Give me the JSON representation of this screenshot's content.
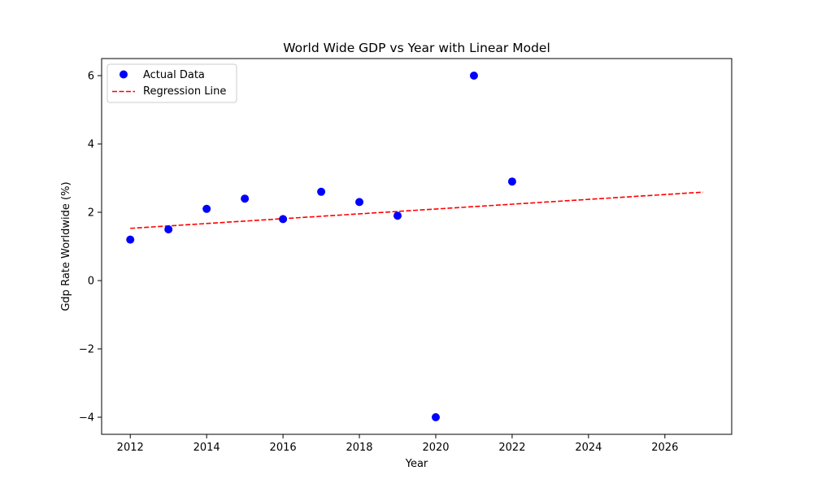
{
  "chart_data": {
    "type": "scatter",
    "title": "World Wide GDP vs Year with Linear Model",
    "xlabel": "Year",
    "ylabel": "Gdp Rate Worldwide (%)",
    "xlim": [
      2011.25,
      2027.75
    ],
    "ylim": [
      -4.5,
      6.5
    ],
    "xticks": [
      2012,
      2014,
      2016,
      2018,
      2020,
      2022,
      2024,
      2026
    ],
    "yticks": [
      -4,
      -2,
      0,
      2,
      4,
      6
    ],
    "xtick_labels": [
      "2012",
      "2014",
      "2016",
      "2018",
      "2020",
      "2022",
      "2024",
      "2026"
    ],
    "ytick_labels": [
      "−4",
      "−2",
      "0",
      "2",
      "4",
      "6"
    ],
    "grid": false,
    "legend_position": "top-left",
    "series": [
      {
        "name": "Actual Data",
        "kind": "scatter",
        "color": "#0000ff",
        "x": [
          2012,
          2013,
          2014,
          2015,
          2016,
          2017,
          2018,
          2019,
          2020,
          2021,
          2022
        ],
        "y": [
          1.2,
          1.5,
          2.1,
          2.4,
          1.8,
          2.6,
          2.3,
          1.9,
          -4.0,
          6.0,
          2.9
        ]
      },
      {
        "name": "Regression Line",
        "kind": "line",
        "style": "dashed",
        "color": "#ff0000",
        "x": [
          2012,
          2027
        ],
        "y": [
          1.53,
          2.59
        ]
      }
    ]
  }
}
